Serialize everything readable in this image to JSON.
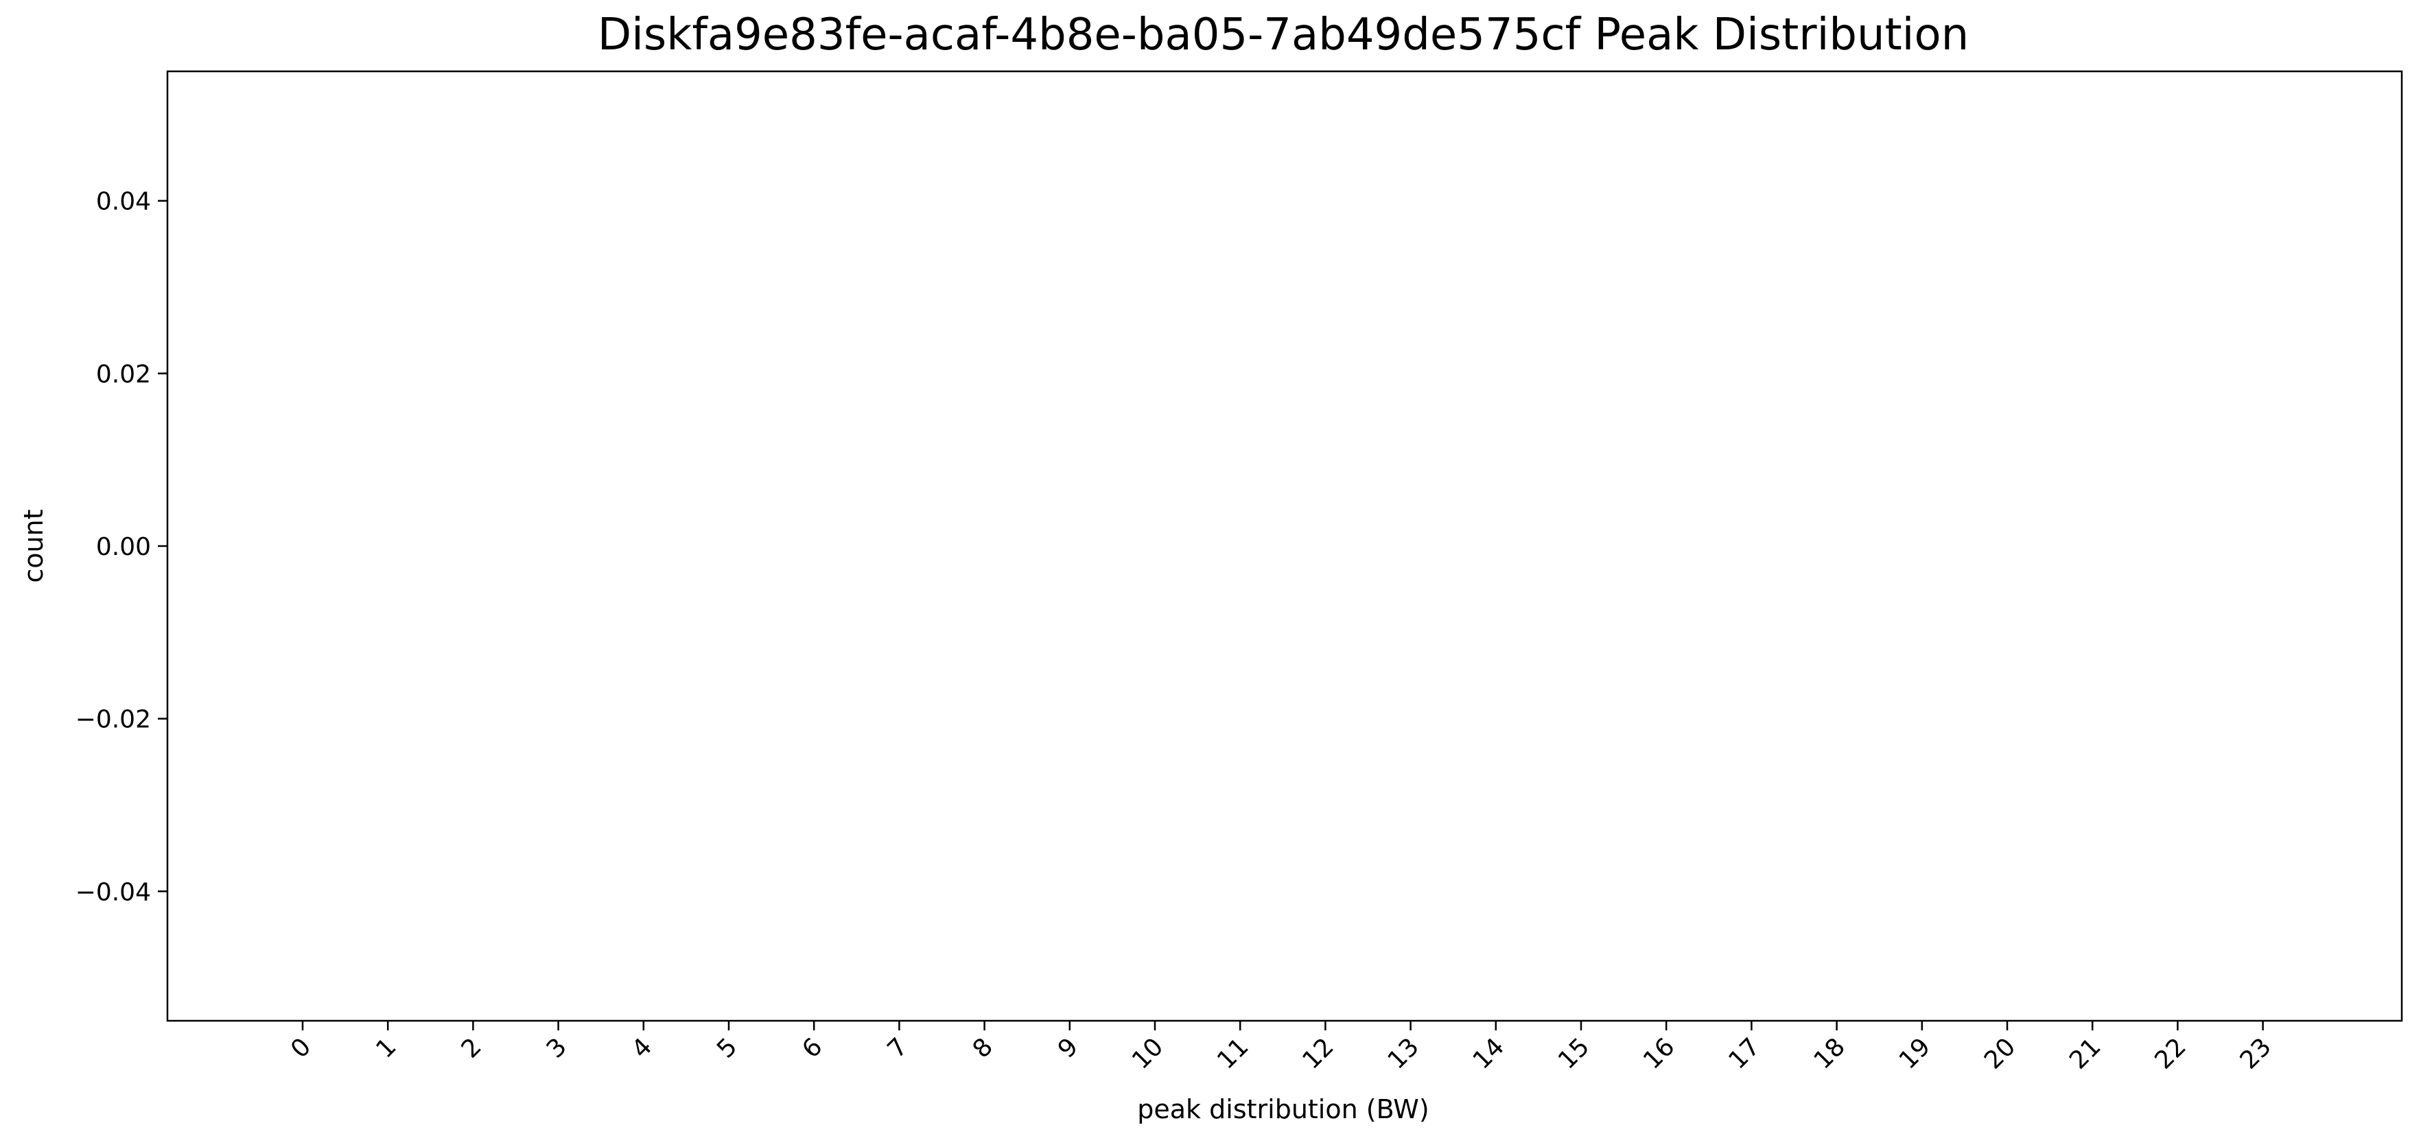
{
  "chart_data": {
    "type": "bar",
    "title": "Diskfa9e83fe-acaf-4b8e-ba05-7ab49de575cf Peak Distribution",
    "xlabel": "peak distribution (BW)",
    "ylabel": "count",
    "categories": [
      "0",
      "1",
      "2",
      "3",
      "4",
      "5",
      "6",
      "7",
      "8",
      "9",
      "10",
      "11",
      "12",
      "13",
      "14",
      "15",
      "16",
      "17",
      "18",
      "19",
      "20",
      "21",
      "22",
      "23"
    ],
    "values": [
      0,
      0,
      0,
      0,
      0,
      0,
      0,
      0,
      0,
      0,
      0,
      0,
      0,
      0,
      0,
      0,
      0,
      0,
      0,
      0,
      0,
      0,
      0,
      0
    ],
    "ylim": [
      -0.055,
      0.055
    ],
    "yticks": [
      -0.04,
      -0.02,
      0.0,
      0.02,
      0.04
    ],
    "ytick_labels": [
      "−0.04",
      "−0.02",
      "0.00",
      "0.02",
      "0.04"
    ],
    "grid": false,
    "bar_edge_color": "#000000",
    "bar_fill_color": "#ffffff"
  }
}
